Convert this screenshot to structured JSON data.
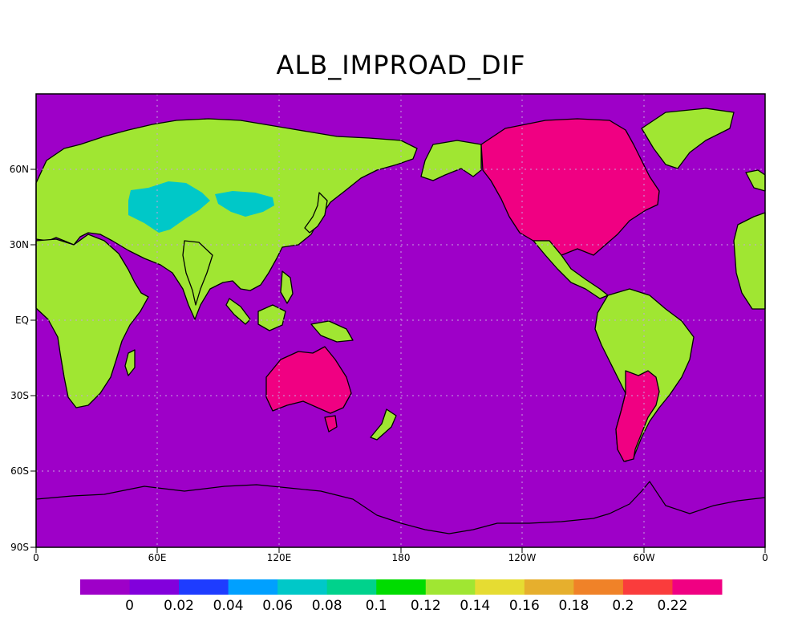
{
  "title": "ALB_IMPROAD_DIF",
  "map": {
    "x_ticks": [
      "0",
      "60E",
      "120E",
      "180",
      "120W",
      "60W",
      "0"
    ],
    "y_ticks": [
      "90S",
      "60S",
      "30S",
      "EQ",
      "30N",
      "60N"
    ],
    "ocean_color": "#9e00c8",
    "gridline_color": "#c8a0e0"
  },
  "colorbar": {
    "colors": [
      "#9e00c8",
      "#8200dc",
      "#1e3cff",
      "#00a0ff",
      "#00c8c8",
      "#00d28c",
      "#00dc00",
      "#a0e632",
      "#e6dc32",
      "#e6af2d",
      "#f08228",
      "#fa3c3c",
      "#f00082"
    ],
    "labels": [
      "0",
      "0.02",
      "0.04",
      "0.06",
      "0.08",
      "0.1",
      "0.12",
      "0.14",
      "0.16",
      "0.18",
      "0.2",
      "0.22"
    ]
  },
  "regions": [
    {
      "name": "eurasia",
      "value_class": "0.12-0.14",
      "color": "#a0e632"
    },
    {
      "name": "central-asia",
      "value_class": "0.06-0.08",
      "color": "#00c8c8"
    },
    {
      "name": "africa",
      "value_class": "0.12-0.14",
      "color": "#a0e632"
    },
    {
      "name": "australia",
      "value_class": ">0.22",
      "color": "#f00082"
    },
    {
      "name": "north-america",
      "value_class": ">0.22",
      "color": "#f00082"
    },
    {
      "name": "alaska",
      "value_class": "0.12-0.14",
      "color": "#a0e632"
    },
    {
      "name": "greenland",
      "value_class": "0.12-0.14",
      "color": "#a0e632"
    },
    {
      "name": "central-america",
      "value_class": "0.12-0.14",
      "color": "#a0e632"
    },
    {
      "name": "south-america",
      "value_class": "0.12-0.14",
      "color": "#a0e632"
    },
    {
      "name": "argentina",
      "value_class": ">0.22",
      "color": "#f00082"
    },
    {
      "name": "antarctica",
      "value_class": "0",
      "color": "#9e00c8"
    }
  ]
}
